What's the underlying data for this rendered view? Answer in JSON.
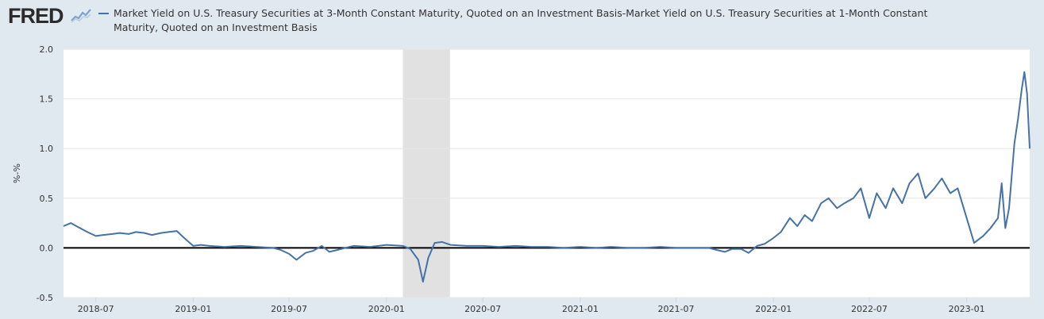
{
  "header": {
    "logo": "FRED",
    "series_title": "Market Yield on U.S. Treasury Securities at 3-Month Constant Maturity, Quoted on an Investment Basis-Market Yield on U.S. Treasury Securities at 1-Month Constant Maturity, Quoted on an Investment Basis"
  },
  "colors": {
    "series": "#4572a7",
    "recession": "#e1e1e1",
    "background": "#e1e9f0",
    "plot": "#ffffff",
    "zero_line": "#000000"
  },
  "chart_data": {
    "type": "line",
    "title": "",
    "xlabel": "",
    "ylabel": "%-%",
    "ylim": [
      -0.5,
      2.0
    ],
    "xlim": [
      "2018-05-01",
      "2023-04-30"
    ],
    "yticks": [
      "2.0",
      "1.5",
      "1.0",
      "0.5",
      "0.0",
      "-0.5"
    ],
    "xticks": [
      "2018-07",
      "2019-01",
      "2019-07",
      "2020-01",
      "2020-07",
      "2021-01",
      "2021-07",
      "2022-01",
      "2022-07",
      "2023-01"
    ],
    "recession": [
      "2020-02-01",
      "2020-04-30"
    ],
    "grid": true,
    "legend_position": "top",
    "series": [
      {
        "name": "Market Yield on U.S. Treasury Securities at 3-Month Constant Maturity, Quoted on an Investment Basis-Market Yield on U.S. Treasury Securities at 1-Month Constant Maturity, Quoted on an Investment Basis",
        "points": [
          [
            "2018-05-01",
            0.22
          ],
          [
            "2018-05-15",
            0.25
          ],
          [
            "2018-06-01",
            0.2
          ],
          [
            "2018-06-15",
            0.16
          ],
          [
            "2018-07-01",
            0.12
          ],
          [
            "2018-07-15",
            0.13
          ],
          [
            "2018-08-01",
            0.14
          ],
          [
            "2018-08-15",
            0.15
          ],
          [
            "2018-09-01",
            0.14
          ],
          [
            "2018-09-15",
            0.16
          ],
          [
            "2018-10-01",
            0.15
          ],
          [
            "2018-10-15",
            0.13
          ],
          [
            "2018-11-01",
            0.15
          ],
          [
            "2018-11-15",
            0.16
          ],
          [
            "2018-12-01",
            0.17
          ],
          [
            "2018-12-15",
            0.1
          ],
          [
            "2019-01-01",
            0.02
          ],
          [
            "2019-01-15",
            0.03
          ],
          [
            "2019-02-01",
            0.02
          ],
          [
            "2019-03-01",
            0.01
          ],
          [
            "2019-04-01",
            0.02
          ],
          [
            "2019-05-01",
            0.01
          ],
          [
            "2019-06-01",
            0.0
          ],
          [
            "2019-06-15",
            -0.02
          ],
          [
            "2019-07-01",
            -0.06
          ],
          [
            "2019-07-15",
            -0.12
          ],
          [
            "2019-08-01",
            -0.05
          ],
          [
            "2019-08-15",
            -0.03
          ],
          [
            "2019-09-01",
            0.02
          ],
          [
            "2019-09-15",
            -0.04
          ],
          [
            "2019-10-01",
            -0.02
          ],
          [
            "2019-10-15",
            0.0
          ],
          [
            "2019-11-01",
            0.02
          ],
          [
            "2019-12-01",
            0.01
          ],
          [
            "2020-01-01",
            0.03
          ],
          [
            "2020-02-01",
            0.02
          ],
          [
            "2020-02-15",
            -0.01
          ],
          [
            "2020-03-01",
            -0.12
          ],
          [
            "2020-03-10",
            -0.34
          ],
          [
            "2020-03-20",
            -0.1
          ],
          [
            "2020-04-01",
            0.05
          ],
          [
            "2020-04-15",
            0.06
          ],
          [
            "2020-05-01",
            0.03
          ],
          [
            "2020-06-01",
            0.02
          ],
          [
            "2020-07-01",
            0.02
          ],
          [
            "2020-08-01",
            0.01
          ],
          [
            "2020-09-01",
            0.02
          ],
          [
            "2020-10-01",
            0.01
          ],
          [
            "2020-11-01",
            0.01
          ],
          [
            "2020-12-01",
            0.0
          ],
          [
            "2021-01-01",
            0.01
          ],
          [
            "2021-02-01",
            0.0
          ],
          [
            "2021-03-01",
            0.01
          ],
          [
            "2021-04-01",
            0.0
          ],
          [
            "2021-05-01",
            0.0
          ],
          [
            "2021-06-01",
            0.01
          ],
          [
            "2021-07-01",
            0.0
          ],
          [
            "2021-08-01",
            0.0
          ],
          [
            "2021-09-01",
            0.0
          ],
          [
            "2021-09-15",
            -0.02
          ],
          [
            "2021-10-01",
            -0.04
          ],
          [
            "2021-10-15",
            -0.01
          ],
          [
            "2021-11-01",
            -0.01
          ],
          [
            "2021-11-15",
            -0.05
          ],
          [
            "2021-12-01",
            0.02
          ],
          [
            "2021-12-15",
            0.04
          ],
          [
            "2022-01-01",
            0.1
          ],
          [
            "2022-01-15",
            0.16
          ],
          [
            "2022-02-01",
            0.3
          ],
          [
            "2022-02-15",
            0.22
          ],
          [
            "2022-03-01",
            0.33
          ],
          [
            "2022-03-15",
            0.27
          ],
          [
            "2022-04-01",
            0.45
          ],
          [
            "2022-04-15",
            0.5
          ],
          [
            "2022-05-01",
            0.4
          ],
          [
            "2022-05-15",
            0.45
          ],
          [
            "2022-06-01",
            0.5
          ],
          [
            "2022-06-15",
            0.6
          ],
          [
            "2022-07-01",
            0.3
          ],
          [
            "2022-07-15",
            0.55
          ],
          [
            "2022-08-01",
            0.4
          ],
          [
            "2022-08-15",
            0.6
          ],
          [
            "2022-09-01",
            0.45
          ],
          [
            "2022-09-15",
            0.65
          ],
          [
            "2022-10-01",
            0.75
          ],
          [
            "2022-10-15",
            0.5
          ],
          [
            "2022-11-01",
            0.6
          ],
          [
            "2022-11-15",
            0.7
          ],
          [
            "2022-12-01",
            0.55
          ],
          [
            "2022-12-15",
            0.6
          ],
          [
            "2023-01-01",
            0.3
          ],
          [
            "2023-01-15",
            0.05
          ],
          [
            "2023-02-01",
            0.12
          ],
          [
            "2023-02-15",
            0.2
          ],
          [
            "2023-03-01",
            0.3
          ],
          [
            "2023-03-08",
            0.65
          ],
          [
            "2023-03-15",
            0.2
          ],
          [
            "2023-03-22",
            0.4
          ],
          [
            "2023-04-01",
            1.05
          ],
          [
            "2023-04-08",
            1.3
          ],
          [
            "2023-04-15",
            1.6
          ],
          [
            "2023-04-20",
            1.77
          ],
          [
            "2023-04-25",
            1.55
          ],
          [
            "2023-04-30",
            1.0
          ]
        ]
      }
    ]
  }
}
